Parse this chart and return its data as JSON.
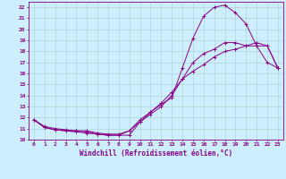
{
  "xlabel": "Windchill (Refroidissement éolien,°C)",
  "bg_color": "#cceeff",
  "line_color": "#880088",
  "grid_color": "#aacccc",
  "xlim": [
    -0.5,
    23.5
  ],
  "ylim": [
    10,
    22.5
  ],
  "xticks": [
    0,
    1,
    2,
    3,
    4,
    5,
    6,
    7,
    8,
    9,
    10,
    11,
    12,
    13,
    14,
    15,
    16,
    17,
    18,
    19,
    20,
    21,
    22,
    23
  ],
  "yticks": [
    10,
    11,
    12,
    13,
    14,
    15,
    16,
    17,
    18,
    19,
    20,
    21,
    22
  ],
  "line1_x": [
    0,
    1,
    2,
    3,
    4,
    5,
    6,
    7,
    8,
    9,
    10,
    11,
    12,
    13,
    14,
    15,
    16,
    17,
    18,
    19,
    20,
    21,
    22,
    23
  ],
  "line1_y": [
    11.8,
    11.1,
    10.9,
    10.8,
    10.8,
    10.7,
    10.5,
    10.4,
    10.4,
    10.8,
    11.6,
    12.5,
    13.2,
    13.8,
    16.5,
    19.2,
    21.2,
    22.0,
    22.2,
    21.5,
    20.5,
    18.5,
    17.0,
    16.5
  ],
  "line2_x": [
    0,
    1,
    2,
    3,
    4,
    5,
    6,
    7,
    8,
    9,
    10,
    11,
    12,
    13,
    14,
    15,
    16,
    17,
    18,
    19,
    20,
    21,
    22,
    23
  ],
  "line2_y": [
    11.8,
    11.1,
    10.9,
    10.8,
    10.7,
    10.6,
    10.5,
    10.4,
    10.4,
    10.4,
    11.6,
    12.3,
    13.0,
    14.0,
    15.5,
    17.0,
    17.8,
    18.2,
    18.8,
    18.8,
    18.5,
    18.5,
    18.5,
    16.5
  ],
  "line3_x": [
    0,
    1,
    2,
    3,
    4,
    5,
    6,
    7,
    8,
    9,
    10,
    11,
    12,
    13,
    14,
    15,
    16,
    17,
    18,
    19,
    20,
    21,
    22,
    23
  ],
  "line3_y": [
    11.8,
    11.2,
    11.0,
    10.9,
    10.8,
    10.8,
    10.6,
    10.5,
    10.5,
    10.8,
    11.8,
    12.5,
    13.3,
    14.3,
    15.5,
    16.2,
    16.8,
    17.5,
    18.0,
    18.2,
    18.5,
    18.8,
    18.5,
    16.5
  ],
  "font_size_ticks": 4.5,
  "font_size_xlabel": 5.5,
  "linewidth": 0.7,
  "markersize": 3.0
}
